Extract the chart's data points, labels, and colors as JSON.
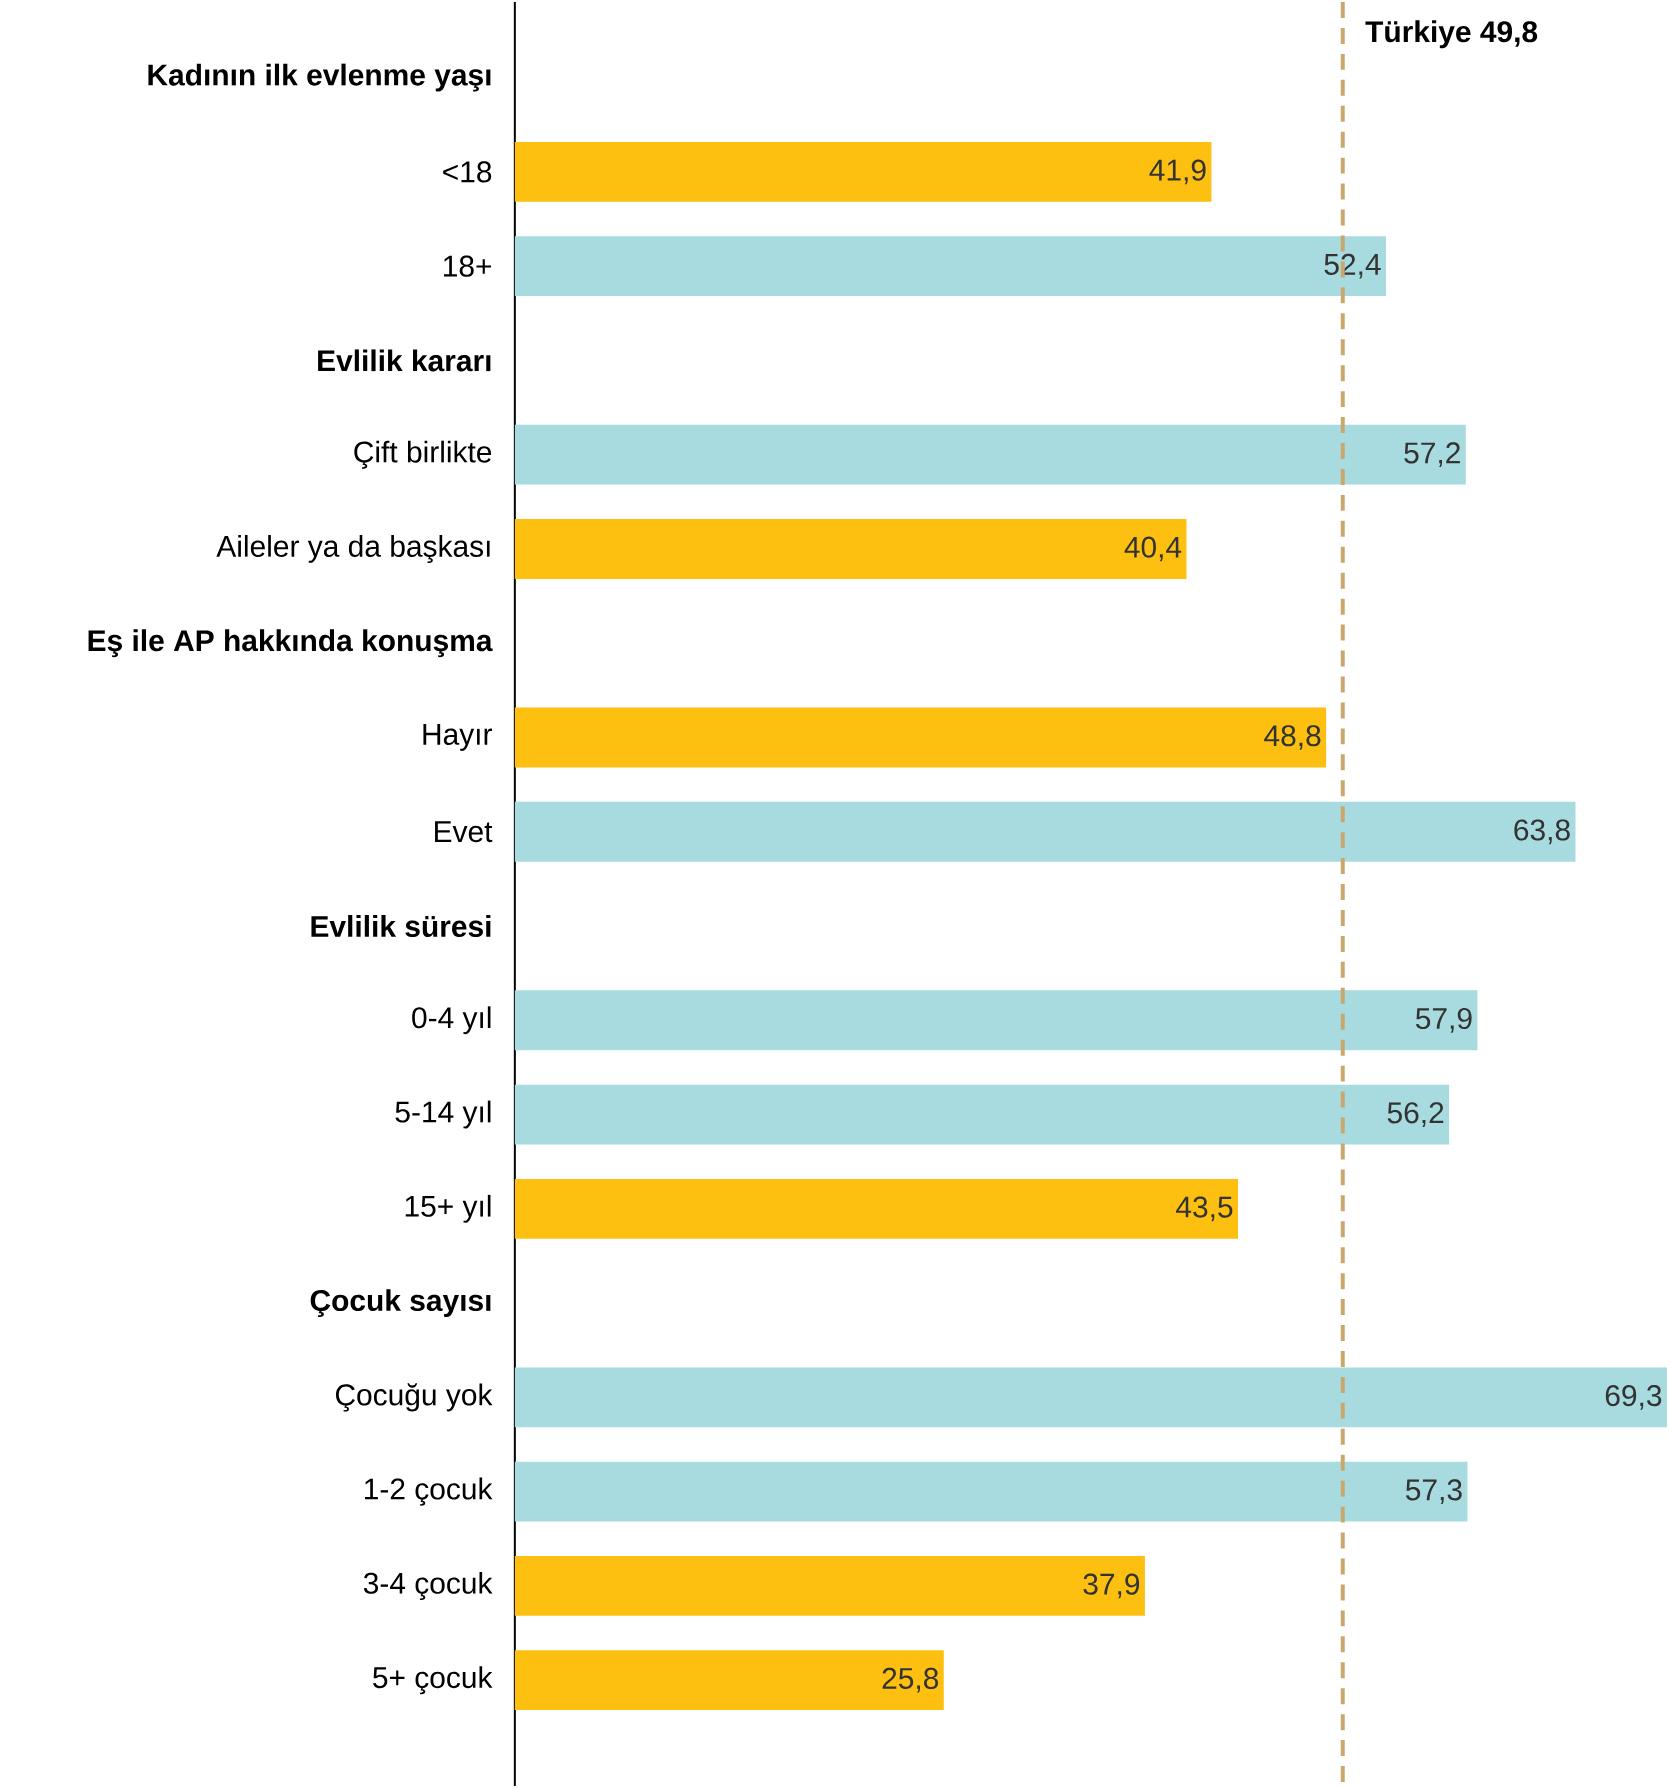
{
  "chart_data": {
    "type": "bar",
    "orientation": "horizontal",
    "categories": [
      "Kadının ilk evlenme yaşı",
      "<18",
      "18+",
      "Evlilik kararı",
      "Çift birlikte",
      "Aileler ya da başkası",
      "Eş ile AP hakkında konuşma",
      "Hayır",
      "Evet",
      "Evlilik süresi",
      "0-4 yıl",
      "5-14 yıl",
      "15+ yıl",
      "Çocuk sayısı",
      "Çocuğu yok",
      "1-2 çocuk",
      "3-4 çocuk",
      "5+ çocuk"
    ],
    "values": [
      null,
      41.9,
      52.4,
      null,
      57.2,
      40.4,
      null,
      48.8,
      63.8,
      null,
      57.9,
      56.2,
      43.5,
      null,
      69.3,
      57.3,
      37.9,
      25.8
    ],
    "value_labels": [
      null,
      "41,9",
      "52,4",
      null,
      "57,2",
      "40,4",
      null,
      "48,8",
      "63,8",
      null,
      "57,9",
      "56,2",
      "43,5",
      null,
      "69,3",
      "57,3",
      "37,9",
      "25,8"
    ],
    "colors": [
      "#fdc010",
      "#fdc010",
      "#a7dbdf",
      "#fdc010",
      "#a7dbdf",
      "#fdc010",
      "#fdc010",
      "#fdc010",
      "#a7dbdf",
      "#fdc010",
      "#a7dbdf",
      "#a7dbdf",
      "#fdc010",
      "#fdc010",
      "#a7dbdf",
      "#a7dbdf",
      "#fdc010",
      "#fdc010"
    ],
    "xlim": [
      0,
      69.5
    ],
    "tick_labels": "y",
    "ref_lines": [
      {
        "axis": "x",
        "value": 49.8,
        "label": "Türkiye 49,8",
        "color": "#c9a86f",
        "line_style": "dashed"
      }
    ]
  }
}
